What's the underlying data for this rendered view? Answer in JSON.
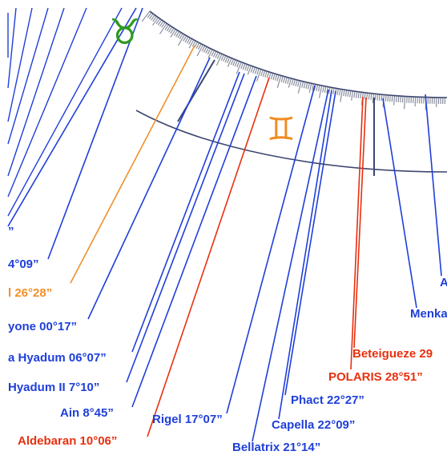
{
  "colors": {
    "line_default": "#1f3fd9",
    "line_highlight": "#e8300f",
    "line_orange": "#f0902a",
    "wheel": "#3d4770",
    "taurus": "#2f9a20",
    "gemini": "#f08c22"
  },
  "signs": {
    "taurus": {
      "glyph": "♉",
      "icon": "taurus-icon"
    },
    "gemini": {
      "glyph": "♊",
      "icon": "gemini-icon"
    }
  },
  "labels": [
    {
      "text": "”",
      "color": "line_default"
    },
    {
      "text": "4°09”",
      "color": "line_default"
    },
    {
      "text": "l  26°28”",
      "color": "line_orange"
    },
    {
      "text": "yone  00°17”",
      "color": "line_default"
    },
    {
      "text": "a Hyadum  06°07”",
      "color": "line_default"
    },
    {
      "text": "Hyadum II  7°10”",
      "color": "line_default"
    },
    {
      "text": "Ain  8°45”",
      "color": "line_default"
    },
    {
      "text": "Aldebaran  10°06”",
      "color": "line_highlight"
    },
    {
      "text": "Rigel  17°07”",
      "color": "line_default"
    },
    {
      "text": "Bellatrix  21°14”",
      "color": "line_default"
    },
    {
      "text": "Capella  22°09”",
      "color": "line_default"
    },
    {
      "text": "Phact  22°27”",
      "color": "line_default"
    },
    {
      "text": "POLARIS  28°51”",
      "color": "line_highlight"
    },
    {
      "text": "Beteigueze 29",
      "color": "line_highlight"
    },
    {
      "text": "Menka",
      "color": "line_default"
    },
    {
      "text": "A",
      "color": "line_default"
    }
  ]
}
